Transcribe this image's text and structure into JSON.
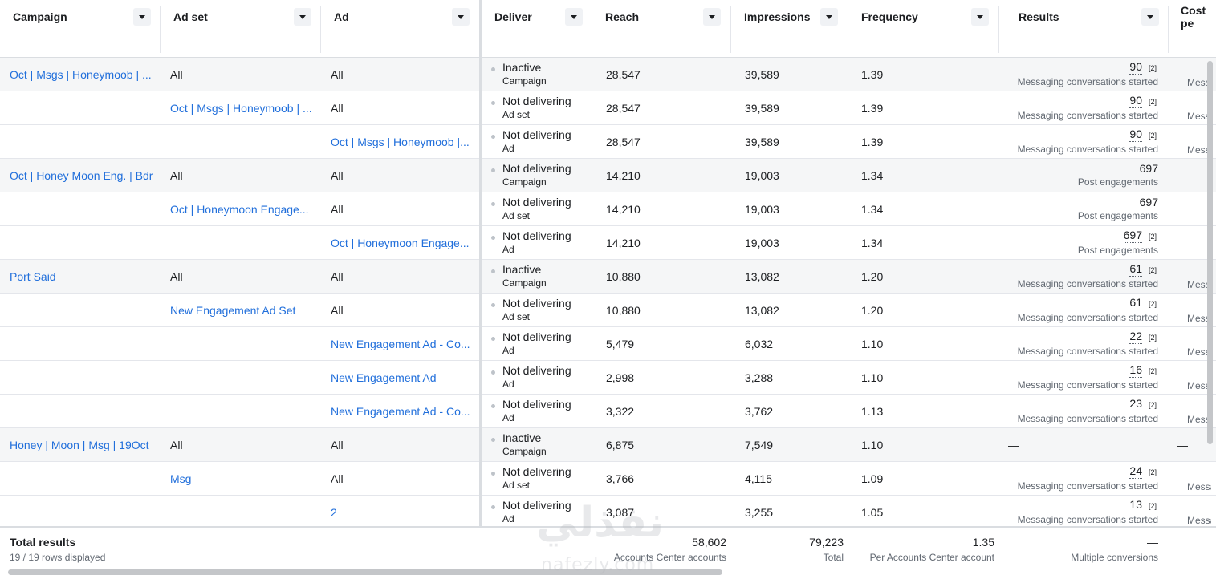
{
  "headers": {
    "campaign": "Campaign",
    "adset": "Ad set",
    "ad": "Ad",
    "deliver": "Deliver",
    "reach": "Reach",
    "impressions": "Impressions",
    "frequency": "Frequency",
    "results": "Results",
    "cost": "Cost pe"
  },
  "rows": [
    {
      "campaign": "Oct | Msgs | Honeymoob | ...",
      "adset": "All",
      "ad": "All",
      "status": "Inactive",
      "level": "Campaign",
      "reach": "28,547",
      "impressions": "39,589",
      "frequency": "1.39",
      "result": "90",
      "result_sup": "[2]",
      "result_label": "Messaging conversations started",
      "cost": "Messa"
    },
    {
      "campaign": "",
      "adset": "Oct | Msgs | Honeymoob | ...",
      "ad": "All",
      "status": "Not delivering",
      "level": "Ad set",
      "reach": "28,547",
      "impressions": "39,589",
      "frequency": "1.39",
      "result": "90",
      "result_sup": "[2]",
      "result_label": "Messaging conversations started",
      "cost": "Messa"
    },
    {
      "campaign": "",
      "adset": "",
      "ad": "Oct | Msgs | Honeymoob |...",
      "status": "Not delivering",
      "level": "Ad",
      "reach": "28,547",
      "impressions": "39,589",
      "frequency": "1.39",
      "result": "90",
      "result_sup": "[2]",
      "result_label": "Messaging conversations started",
      "cost": "Messa"
    },
    {
      "campaign": "Oct | Honey Moon Eng. | Bdr",
      "adset": "All",
      "ad": "All",
      "status": "Not delivering",
      "level": "Campaign",
      "reach": "14,210",
      "impressions": "19,003",
      "frequency": "1.34",
      "result": "697",
      "result_sup": "",
      "result_label": "Post engagements",
      "cost": ""
    },
    {
      "campaign": "",
      "adset": "Oct | Honeymoon Engage...",
      "ad": "All",
      "status": "Not delivering",
      "level": "Ad set",
      "reach": "14,210",
      "impressions": "19,003",
      "frequency": "1.34",
      "result": "697",
      "result_sup": "",
      "result_label": "Post engagements",
      "cost": ""
    },
    {
      "campaign": "",
      "adset": "",
      "ad": "Oct | Honeymoon Engage...",
      "status": "Not delivering",
      "level": "Ad",
      "reach": "14,210",
      "impressions": "19,003",
      "frequency": "1.34",
      "result": "697",
      "result_sup": "[2]",
      "result_label": "Post engagements",
      "cost": ""
    },
    {
      "campaign": "Port Said",
      "adset": "All",
      "ad": "All",
      "status": "Inactive",
      "level": "Campaign",
      "reach": "10,880",
      "impressions": "13,082",
      "frequency": "1.20",
      "result": "61",
      "result_sup": "[2]",
      "result_label": "Messaging conversations started",
      "cost": "Messa"
    },
    {
      "campaign": "",
      "adset": "New Engagement Ad Set",
      "ad": "All",
      "status": "Not delivering",
      "level": "Ad set",
      "reach": "10,880",
      "impressions": "13,082",
      "frequency": "1.20",
      "result": "61",
      "result_sup": "[2]",
      "result_label": "Messaging conversations started",
      "cost": "Messa"
    },
    {
      "campaign": "",
      "adset": "",
      "ad": "New Engagement Ad - Co...",
      "status": "Not delivering",
      "level": "Ad",
      "reach": "5,479",
      "impressions": "6,032",
      "frequency": "1.10",
      "result": "22",
      "result_sup": "[2]",
      "result_label": "Messaging conversations started",
      "cost": "Messa"
    },
    {
      "campaign": "",
      "adset": "",
      "ad": "New Engagement Ad",
      "status": "Not delivering",
      "level": "Ad",
      "reach": "2,998",
      "impressions": "3,288",
      "frequency": "1.10",
      "result": "16",
      "result_sup": "[2]",
      "result_label": "Messaging conversations started",
      "cost": "Messa"
    },
    {
      "campaign": "",
      "adset": "",
      "ad": "New Engagement Ad - Co...",
      "status": "Not delivering",
      "level": "Ad",
      "reach": "3,322",
      "impressions": "3,762",
      "frequency": "1.13",
      "result": "23",
      "result_sup": "[2]",
      "result_label": "Messaging conversations started",
      "cost": "Messa"
    },
    {
      "campaign": "Honey | Moon | Msg | 19Oct",
      "adset": "All",
      "ad": "All",
      "status": "Inactive",
      "level": "Campaign",
      "reach": "6,875",
      "impressions": "7,549",
      "frequency": "1.10",
      "result": "—",
      "result_sup": "",
      "result_label": "",
      "cost": "—"
    },
    {
      "campaign": "",
      "adset": "Msg",
      "ad": "All",
      "status": "Not delivering",
      "level": "Ad set",
      "reach": "3,766",
      "impressions": "4,115",
      "frequency": "1.09",
      "result": "24",
      "result_sup": "[2]",
      "result_label": "Messaging conversations started",
      "cost": "Messa"
    },
    {
      "campaign": "",
      "adset": "",
      "ad": "2",
      "status": "Not delivering",
      "level": "Ad",
      "reach": "3,087",
      "impressions": "3,255",
      "frequency": "1.05",
      "result": "13",
      "result_sup": "[2]",
      "result_label": "Messaging conversations started",
      "cost": "Messa"
    }
  ],
  "totals": {
    "title": "Total results",
    "rows_displayed": "19 / 19 rows displayed",
    "reach": "58,602",
    "reach_label": "Accounts Center accounts",
    "impressions": "79,223",
    "impressions_label": "Total",
    "frequency": "1.35",
    "frequency_label": "Per Accounts Center account",
    "results": "—",
    "results_label": "Multiple conversions"
  },
  "watermark": {
    "arabic": "نفذلي",
    "latin": "nafezly.com"
  },
  "colors": {
    "link": "#216fdb",
    "row_gray": "#f5f6f7",
    "border": "#e4e6eb"
  }
}
